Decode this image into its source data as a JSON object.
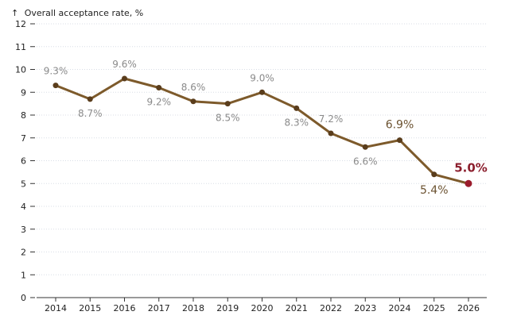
{
  "chart_data": {
    "type": "line",
    "title": "",
    "ylabel": "Overall acceptance rate, %",
    "ylabel_arrow": "↑",
    "xlabel": "",
    "x": [
      "2014",
      "2015",
      "2016",
      "2017",
      "2018",
      "2019",
      "2020",
      "2021",
      "2022",
      "2023",
      "2024",
      "2025",
      "2026"
    ],
    "series": [
      {
        "name": "Overall acceptance rate",
        "values": [
          9.3,
          8.7,
          9.6,
          9.2,
          8.6,
          8.5,
          9.0,
          8.3,
          7.2,
          6.6,
          6.9,
          5.4,
          5.0
        ],
        "labels": [
          "9.3%",
          "8.7%",
          "9.6%",
          "9.2%",
          "8.6%",
          "8.5%",
          "9.0%",
          "8.3%",
          "7.2%",
          "6.6%",
          "6.9%",
          "5.4%",
          "5.0%"
        ],
        "label_side": [
          "above",
          "below",
          "above",
          "below",
          "above",
          "below",
          "above",
          "below",
          "above",
          "below",
          "above",
          "below",
          "above"
        ],
        "label_style": [
          "normal",
          "normal",
          "normal",
          "normal",
          "normal",
          "normal",
          "normal",
          "normal",
          "normal",
          "normal",
          "emphasis",
          "emphasis",
          "final"
        ]
      }
    ],
    "yticks": [
      "0",
      "1",
      "2",
      "3",
      "4",
      "5",
      "6",
      "7",
      "8",
      "9",
      "10",
      "11",
      "12"
    ],
    "ylim": [
      0,
      12
    ],
    "grid": true,
    "line_color": "#7d5a2b",
    "final_point_color": "#9b1c2c",
    "grid_color": "#d8dde6"
  }
}
